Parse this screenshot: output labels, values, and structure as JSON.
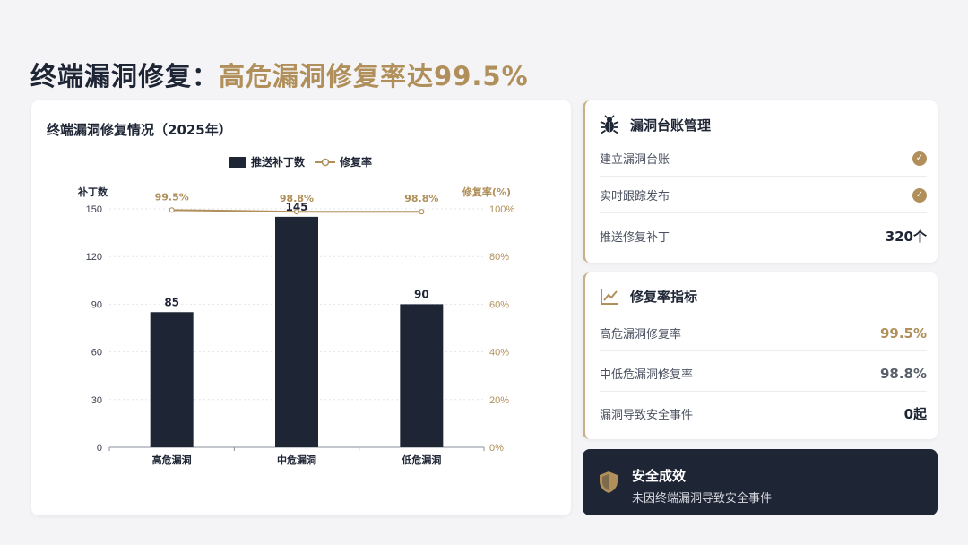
{
  "title": {
    "main": "终端漏洞修复：",
    "highlight": "高危漏洞修复率达99.5%"
  },
  "chart_data": {
    "type": "bar",
    "title": "终端漏洞修复情况（2025年）",
    "categories": [
      "高危漏洞",
      "中危漏洞",
      "低危漏洞"
    ],
    "series": [
      {
        "name": "推送补丁数",
        "type": "bar",
        "axis": "left",
        "values": [
          85,
          145,
          90
        ],
        "color": "#1e2535"
      },
      {
        "name": "修复率",
        "type": "line",
        "axis": "right",
        "values": [
          99.5,
          98.8,
          98.8
        ],
        "labels": [
          "99.5%",
          "98.8%",
          "98.8%"
        ],
        "color": "#b08f5a"
      }
    ],
    "ylabel_left": "补丁数",
    "ylabel_right": "修复率(%)",
    "ylim_left": [
      0,
      150
    ],
    "yticks_left": [
      "0",
      "30",
      "60",
      "90",
      "120",
      "150"
    ],
    "ylim_right": [
      0,
      100
    ],
    "yticks_right": [
      "0%",
      "20%",
      "40%",
      "60%",
      "80%",
      "100%"
    ],
    "legend_position": "top-center",
    "grid": true
  },
  "ledger": {
    "title": "漏洞台账管理",
    "icon": "bug-icon",
    "items": [
      {
        "label": "建立漏洞台账",
        "value": "✓",
        "type": "check"
      },
      {
        "label": "实时跟踪发布",
        "value": "✓",
        "type": "check"
      },
      {
        "label": "推送修复补丁",
        "value": "320个",
        "type": "text"
      }
    ]
  },
  "metrics": {
    "title": "修复率指标",
    "icon": "trend-chart-icon",
    "items": [
      {
        "label": "高危漏洞修复率",
        "value": "99.5%"
      },
      {
        "label": "中低危漏洞修复率",
        "value": "98.8%"
      },
      {
        "label": "漏洞导致安全事件",
        "value": "0起"
      }
    ]
  },
  "result": {
    "title": "安全成效",
    "subtitle": "未因终端漏洞导致安全事件",
    "icon": "shield-icon"
  },
  "colors": {
    "navy": "#1e2535",
    "gold": "#b08f5a",
    "background": "#f4f4f6"
  }
}
